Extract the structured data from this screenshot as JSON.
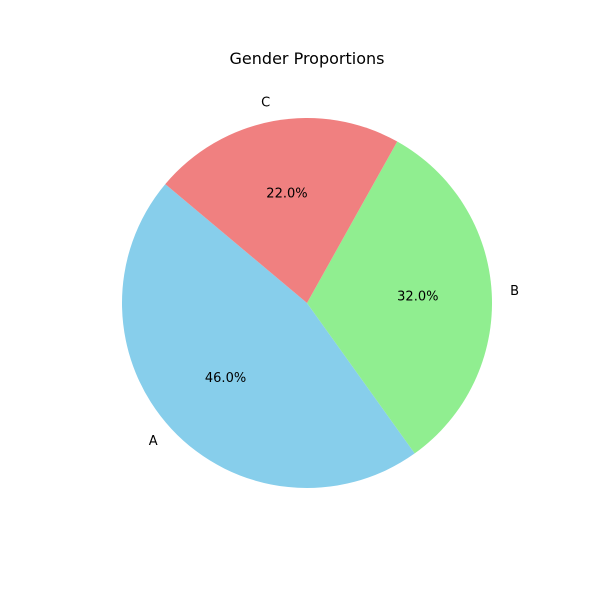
{
  "chart_data": {
    "type": "pie",
    "title": "Gender Proportions",
    "categories": [
      "A",
      "B",
      "C"
    ],
    "values": [
      46.0,
      32.0,
      22.0
    ],
    "value_labels": [
      "46.0%",
      "32.0%",
      "22.0%"
    ],
    "colors": [
      "#87ceeb",
      "#90ee90",
      "#f08080"
    ],
    "start_angle_deg": 140,
    "direction": "counterclockwise",
    "legend": "none"
  }
}
